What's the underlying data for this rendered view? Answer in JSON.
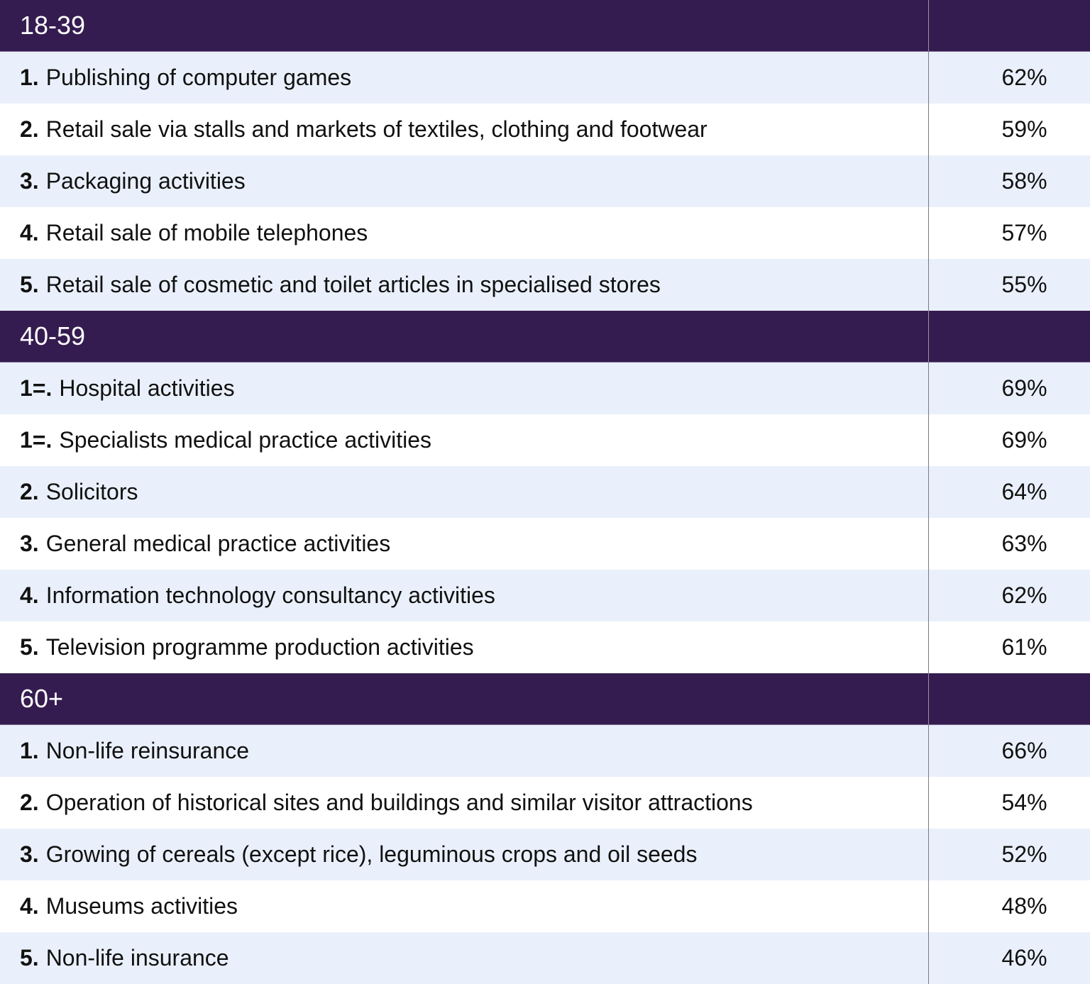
{
  "colors": {
    "header": "#351c50",
    "row_light": "#eaf0fb",
    "row_white": "#ffffff"
  },
  "sections": [
    {
      "title": "18-39",
      "rows": [
        {
          "rank": "1.",
          "label": "Publishing of computer games",
          "value": "62%"
        },
        {
          "rank": "2.",
          "label": "Retail sale via stalls and markets of textiles, clothing and footwear",
          "value": "59%"
        },
        {
          "rank": "3.",
          "label": "Packaging activities",
          "value": "58%"
        },
        {
          "rank": "4.",
          "label": "Retail sale of mobile telephones",
          "value": "57%"
        },
        {
          "rank": "5.",
          "label": "Retail sale of cosmetic and toilet articles in specialised stores",
          "value": "55%"
        }
      ]
    },
    {
      "title": "40-59",
      "rows": [
        {
          "rank": "1=.",
          "label": "Hospital activities",
          "value": "69%"
        },
        {
          "rank": "1=.",
          "label": "Specialists medical practice activities",
          "value": "69%"
        },
        {
          "rank": "2.",
          "label": "Solicitors",
          "value": "64%"
        },
        {
          "rank": "3.",
          "label": "General medical practice activities",
          "value": "63%"
        },
        {
          "rank": "4.",
          "label": "Information technology consultancy activities",
          "value": "62%"
        },
        {
          "rank": "5.",
          "label": "Television programme production activities",
          "value": "61%"
        }
      ]
    },
    {
      "title": "60+",
      "rows": [
        {
          "rank": "1.",
          "label": "Non-life reinsurance",
          "value": "66%"
        },
        {
          "rank": "2.",
          "label": "Operation of historical sites and buildings and similar visitor attractions",
          "value": "54%"
        },
        {
          "rank": "3.",
          "label": "Growing of cereals (except rice), leguminous crops and oil seeds",
          "value": "52%"
        },
        {
          "rank": "4.",
          "label": "Museums activities",
          "value": "48%"
        },
        {
          "rank": "5.",
          "label": "Non-life insurance",
          "value": "46%"
        }
      ]
    }
  ]
}
